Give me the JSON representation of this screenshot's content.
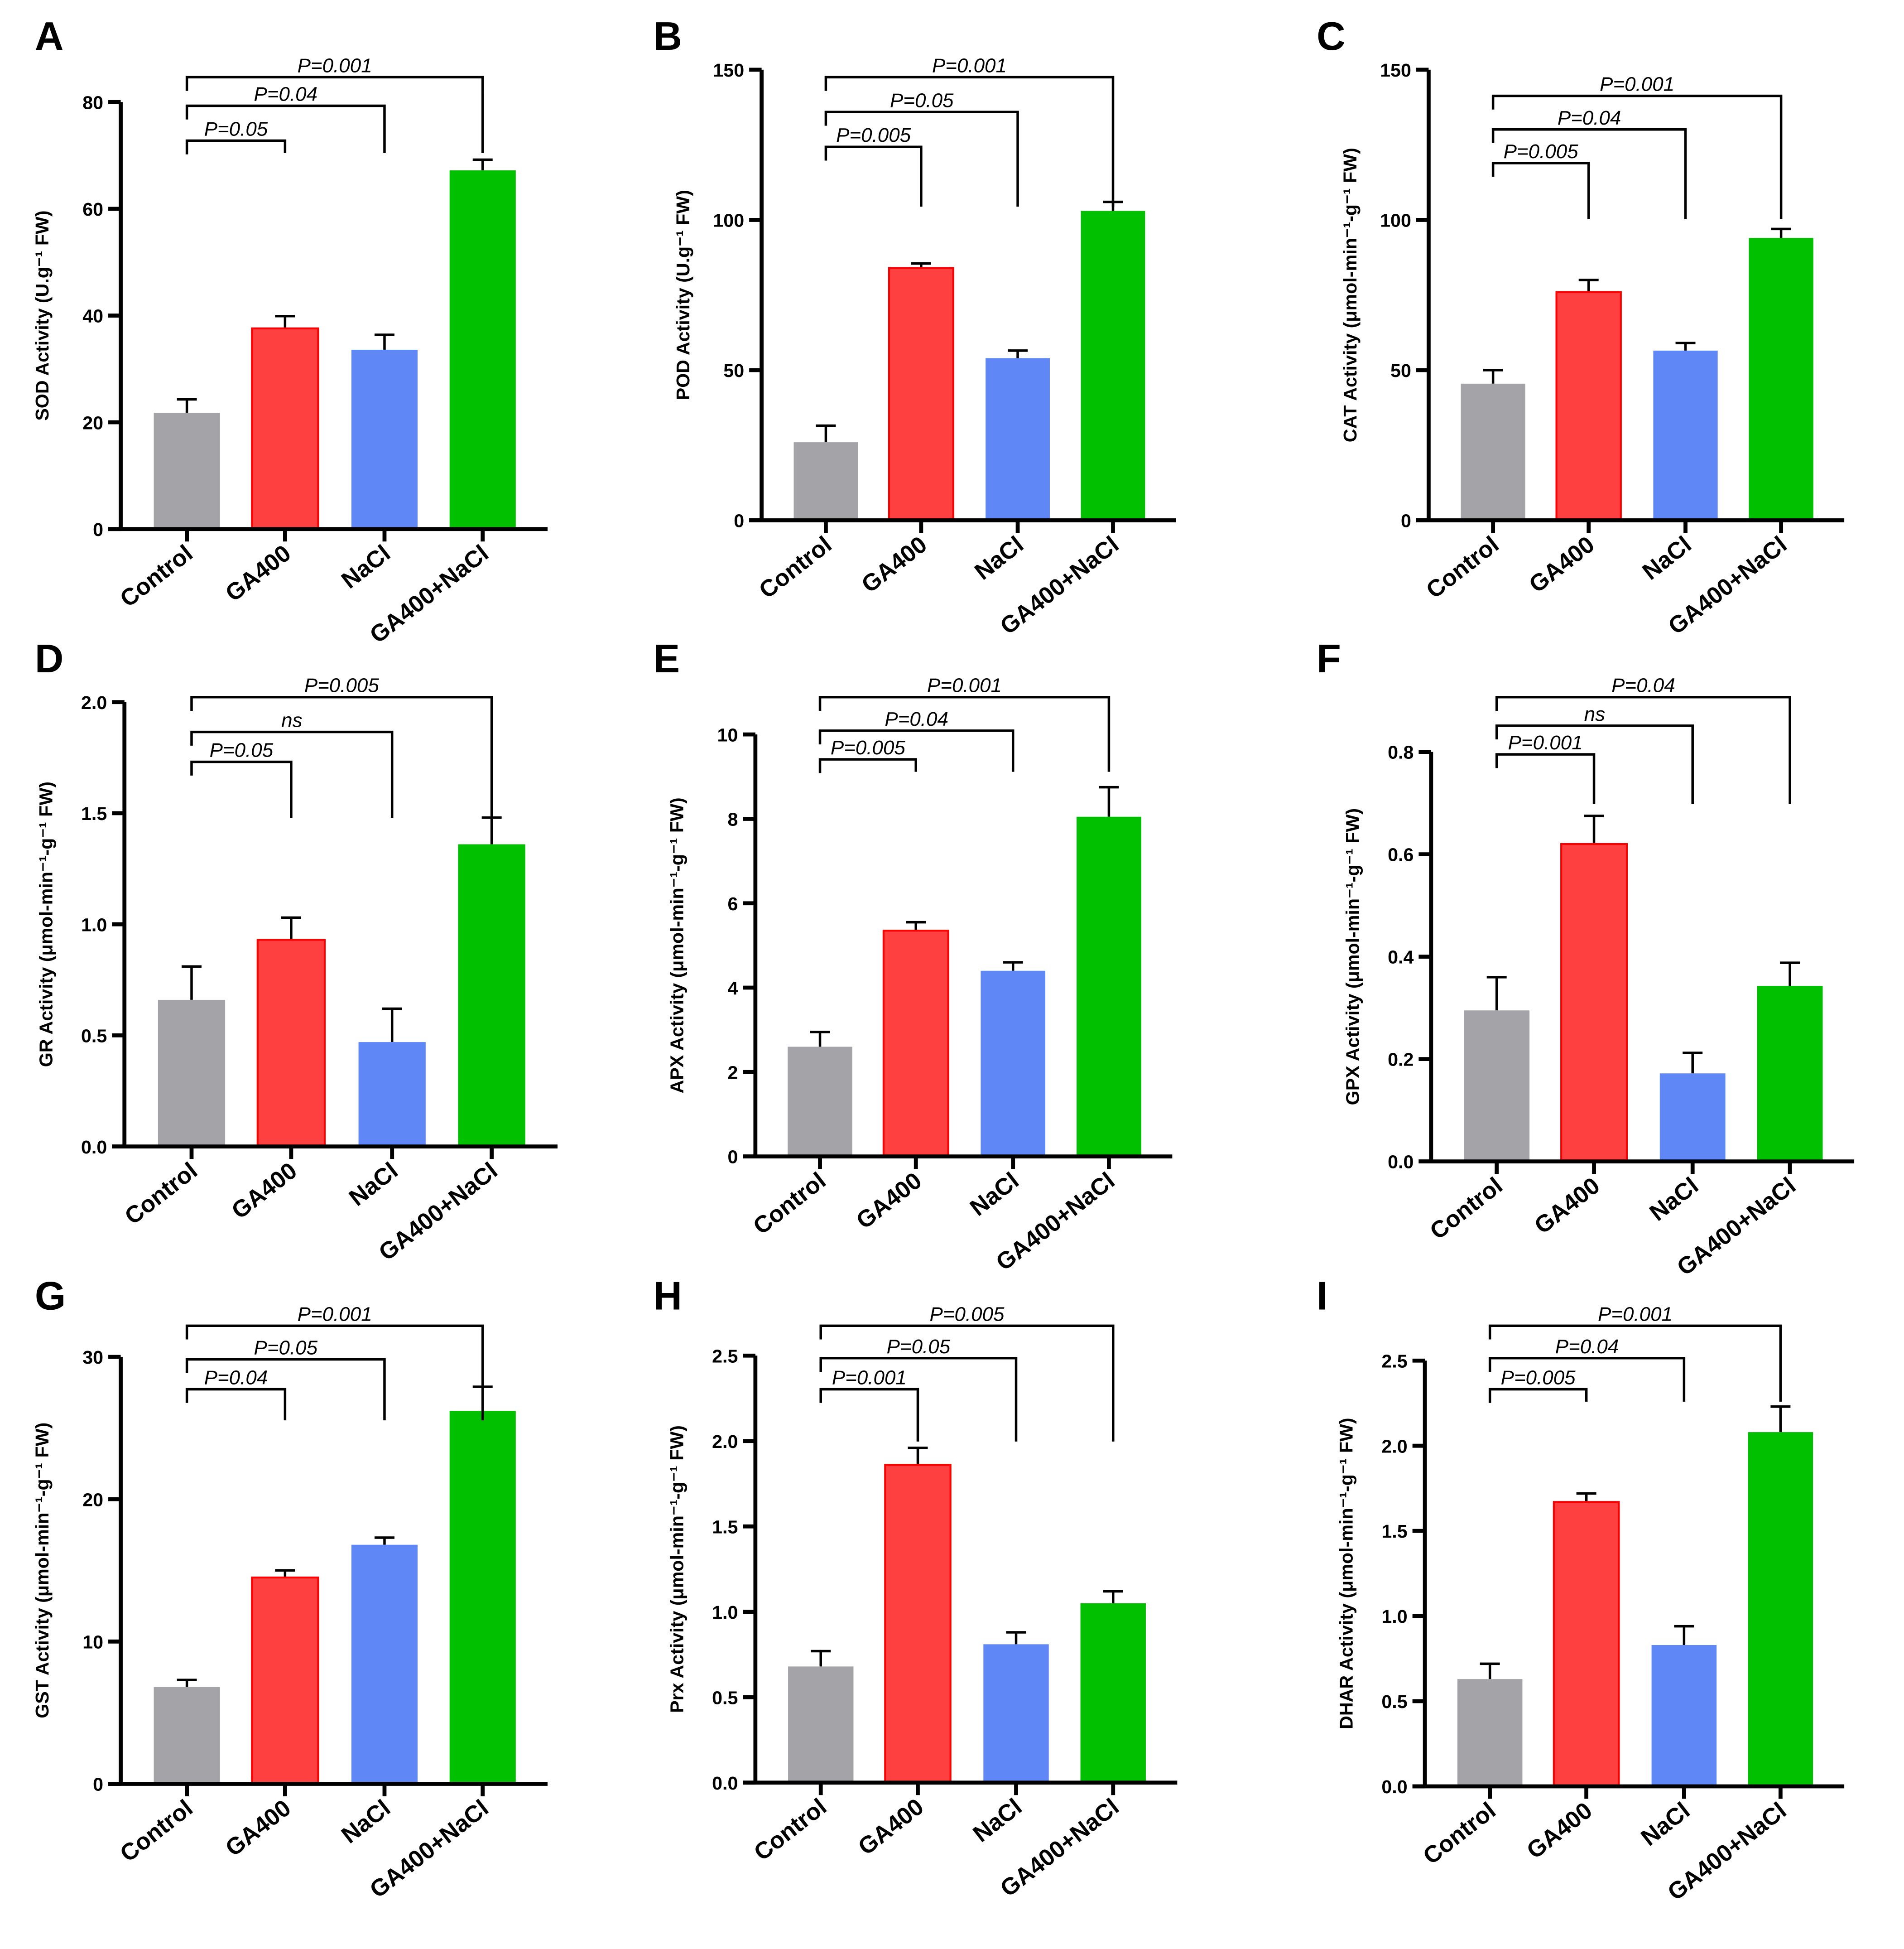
{
  "colors": {
    "Control": "#a3a3a8",
    "GA400": "#ff4040",
    "NaCl": "#5f87f5",
    "GA400+NaCl": "#00c000",
    "GA400_edge": "#ff0000",
    "axis": "#000000"
  },
  "chart_data": [
    {
      "panel": "A",
      "type": "bar",
      "categories": [
        "Control",
        "GA400",
        "NaCl",
        "GA400+NaCl"
      ],
      "values": [
        21.8,
        37.6,
        33.6,
        67.2
      ],
      "errors": [
        2.5,
        2.3,
        2.8,
        2.0
      ],
      "ylabel": "SOD Activity (U.g⁻¹ FW)",
      "ylim": [
        0,
        80
      ],
      "yticks": [
        "0",
        "20",
        "40",
        "60",
        "80"
      ],
      "comparisons": [
        {
          "pair": [
            0,
            1
          ],
          "label": "P=0.05"
        },
        {
          "pair": [
            0,
            2
          ],
          "label": "P=0.04"
        },
        {
          "pair": [
            0,
            3
          ],
          "label": "P=0.001"
        }
      ]
    },
    {
      "panel": "B",
      "type": "bar",
      "categories": [
        "Control",
        "GA400",
        "NaCl",
        "GA400+NaCl"
      ],
      "values": [
        26,
        84,
        54,
        103
      ],
      "errors": [
        5.5,
        1.5,
        2.5,
        3
      ],
      "ylabel": "POD Activity (U.g⁻¹ FW)",
      "ylim": [
        0,
        150
      ],
      "yticks": [
        "0",
        "50",
        "100",
        "150"
      ],
      "comparisons": [
        {
          "pair": [
            0,
            1
          ],
          "label": "P=0.005"
        },
        {
          "pair": [
            0,
            2
          ],
          "label": "P=0.05"
        },
        {
          "pair": [
            0,
            3
          ],
          "label": "P=0.001"
        }
      ]
    },
    {
      "panel": "C",
      "type": "bar",
      "categories": [
        "Control",
        "GA400",
        "NaCl",
        "GA400+NaCl"
      ],
      "values": [
        45.5,
        76,
        56.5,
        94
      ],
      "errors": [
        4.5,
        4,
        2.5,
        3
      ],
      "ylabel": "CAT Activity (μmol-min⁻¹-g⁻¹ FW)",
      "ylim": [
        0,
        150
      ],
      "yticks": [
        "0",
        "50",
        "100",
        "150"
      ],
      "comparisons": [
        {
          "pair": [
            0,
            1
          ],
          "label": "P=0.005"
        },
        {
          "pair": [
            0,
            2
          ],
          "label": "P=0.04"
        },
        {
          "pair": [
            0,
            3
          ],
          "label": "P=0.001"
        }
      ]
    },
    {
      "panel": "D",
      "type": "bar",
      "categories": [
        "Control",
        "GA400",
        "NaCl",
        "GA400+NaCl"
      ],
      "values": [
        0.66,
        0.93,
        0.47,
        1.36
      ],
      "errors": [
        0.15,
        0.1,
        0.15,
        0.12
      ],
      "ylabel": "GR Activity (μmol-min⁻¹-g⁻¹ FW)",
      "ylim": [
        0,
        2.0
      ],
      "yticks": [
        "0.0",
        "0.5",
        "1.0",
        "1.5",
        "2.0"
      ],
      "comparisons": [
        {
          "pair": [
            0,
            1
          ],
          "label": "P=0.05"
        },
        {
          "pair": [
            0,
            2
          ],
          "label": "ns"
        },
        {
          "pair": [
            0,
            3
          ],
          "label": "P=0.005"
        }
      ]
    },
    {
      "panel": "E",
      "type": "bar",
      "categories": [
        "Control",
        "GA400",
        "NaCl",
        "GA400+NaCl"
      ],
      "values": [
        2.6,
        5.35,
        4.4,
        8.05
      ],
      "errors": [
        0.35,
        0.2,
        0.2,
        0.7
      ],
      "ylabel": "APX Activity (μmol-min⁻¹-g⁻¹ FW)",
      "ylim": [
        0,
        10
      ],
      "yticks": [
        "0",
        "2",
        "4",
        "6",
        "8",
        "10"
      ],
      "comparisons": [
        {
          "pair": [
            0,
            1
          ],
          "label": "P=0.005"
        },
        {
          "pair": [
            0,
            2
          ],
          "label": "P=0.04"
        },
        {
          "pair": [
            0,
            3
          ],
          "label": "P=0.001"
        }
      ]
    },
    {
      "panel": "F",
      "type": "bar",
      "categories": [
        "Control",
        "GA400",
        "NaCl",
        "GA400+NaCl"
      ],
      "values": [
        0.295,
        0.62,
        0.172,
        0.343
      ],
      "errors": [
        0.065,
        0.055,
        0.04,
        0.045
      ],
      "ylabel": "GPX Activity (μmol-min⁻¹-g⁻¹ FW)",
      "ylim": [
        0,
        0.8
      ],
      "yticks": [
        "0.0",
        "0.2",
        "0.4",
        "0.6",
        "0.8"
      ],
      "comparisons": [
        {
          "pair": [
            0,
            1
          ],
          "label": "P=0.001"
        },
        {
          "pair": [
            0,
            2
          ],
          "label": "ns"
        },
        {
          "pair": [
            0,
            3
          ],
          "label": "P=0.04"
        }
      ]
    },
    {
      "panel": "G",
      "type": "bar",
      "categories": [
        "Control",
        "GA400",
        "NaCl",
        "GA400+NaCl"
      ],
      "values": [
        6.8,
        14.5,
        16.8,
        26.2
      ],
      "errors": [
        0.5,
        0.5,
        0.5,
        1.7
      ],
      "ylabel": "GST Activity (μmol-min⁻¹-g⁻¹ FW)",
      "ylim": [
        0,
        30
      ],
      "yticks": [
        "0",
        "10",
        "20",
        "30"
      ],
      "comparisons": [
        {
          "pair": [
            0,
            1
          ],
          "label": "P=0.04"
        },
        {
          "pair": [
            0,
            2
          ],
          "label": "P=0.05"
        },
        {
          "pair": [
            0,
            3
          ],
          "label": "P=0.001"
        }
      ]
    },
    {
      "panel": "H",
      "type": "bar",
      "categories": [
        "Control",
        "GA400",
        "NaCl",
        "GA400+NaCl"
      ],
      "values": [
        0.68,
        1.86,
        0.81,
        1.05
      ],
      "errors": [
        0.09,
        0.1,
        0.07,
        0.07
      ],
      "ylabel": "Prx Activity (μmol-min⁻¹-g⁻¹ FW)",
      "ylim": [
        0,
        2.5
      ],
      "yticks": [
        "0.0",
        "0.5",
        "1.0",
        "1.5",
        "2.0",
        "2.5"
      ],
      "comparisons": [
        {
          "pair": [
            0,
            1
          ],
          "label": "P=0.001"
        },
        {
          "pair": [
            0,
            2
          ],
          "label": "P=0.05"
        },
        {
          "pair": [
            0,
            3
          ],
          "label": "P=0.005"
        }
      ]
    },
    {
      "panel": "I",
      "type": "bar",
      "categories": [
        "Control",
        "GA400",
        "NaCl",
        "GA400+NaCl"
      ],
      "values": [
        0.63,
        1.67,
        0.83,
        2.08
      ],
      "errors": [
        0.09,
        0.05,
        0.11,
        0.15
      ],
      "ylabel": "DHAR Activity (μmol-min⁻¹-g⁻¹ FW)",
      "ylim": [
        0,
        2.5
      ],
      "yticks": [
        "0.0",
        "0.5",
        "1.0",
        "1.5",
        "2.0",
        "2.5"
      ],
      "comparisons": [
        {
          "pair": [
            0,
            1
          ],
          "label": "P=0.005"
        },
        {
          "pair": [
            0,
            2
          ],
          "label": "P=0.04"
        },
        {
          "pair": [
            0,
            3
          ],
          "label": "P=0.001"
        }
      ]
    }
  ]
}
